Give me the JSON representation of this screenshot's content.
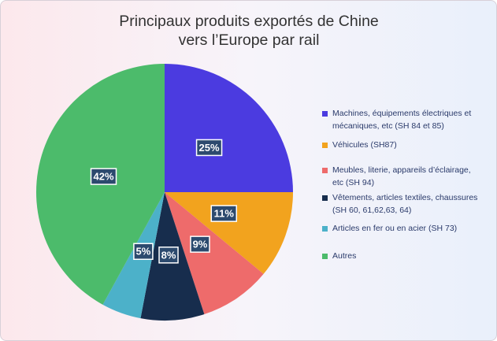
{
  "chart_data": {
    "type": "pie",
    "title": "Principaux produits exportés de Chine vers l’Europe par rail",
    "categories": [
      "Machines, équipements électriques et mécaniques, etc (SH 84 et 85)",
      "Véhicules (SH87)",
      "Meubles, literie, appareils d’éclairage, etc (SH 94)",
      "Vêtements, articles textiles, chaussures (SH 60, 61,62,63, 64)",
      "Articles en fer ou en acier (SH 73)",
      "Autres"
    ],
    "values": [
      25,
      11,
      9,
      8,
      5,
      42
    ],
    "value_labels": [
      "25%",
      "11%",
      "9%",
      "8%",
      "5%",
      "42%"
    ],
    "colors": [
      "#4b3be0",
      "#f2a31e",
      "#ee6b6b",
      "#172d4d",
      "#4cb1c9",
      "#4cbb6b"
    ],
    "legend": "right"
  }
}
